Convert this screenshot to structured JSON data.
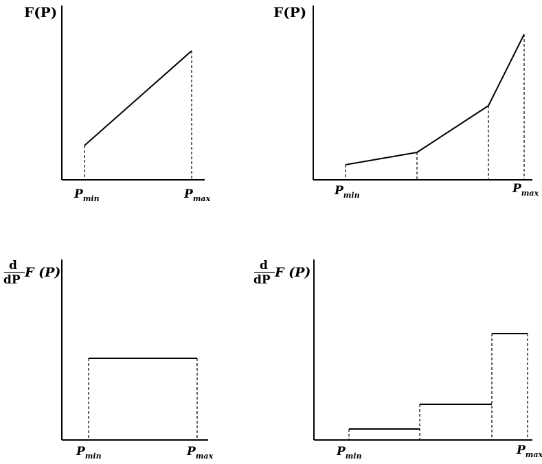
{
  "panels": {
    "top_left": {
      "y_label": "F(P)",
      "x_tick_min": {
        "main": "P",
        "sub": "min"
      },
      "x_tick_max": {
        "main": "P",
        "sub": "max"
      }
    },
    "top_right": {
      "y_label": "F(P)",
      "x_tick_min": {
        "main": "P",
        "sub": "min"
      },
      "x_tick_max": {
        "main": "P",
        "sub": "max"
      }
    },
    "bottom_left": {
      "y_label": {
        "num": "d",
        "den": "dP",
        "func": "F (P)"
      },
      "x_tick_min": {
        "main": "P",
        "sub": "min"
      },
      "x_tick_max": {
        "main": "P",
        "sub": "max"
      }
    },
    "bottom_right": {
      "y_label": {
        "num": "d",
        "den": "dP",
        "func": "F (P)"
      },
      "x_tick_min": {
        "main": "P",
        "sub": "min"
      },
      "x_tick_max": {
        "main": "P",
        "sub": "max"
      }
    }
  }
}
